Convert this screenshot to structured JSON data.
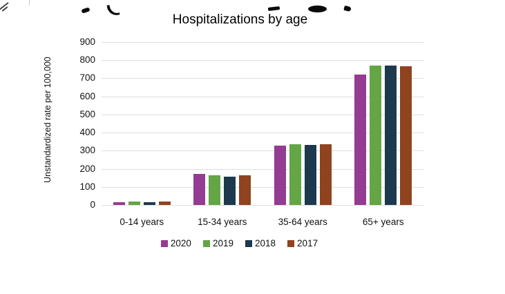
{
  "chart_data": {
    "type": "bar",
    "title": "Hospitalizations by age",
    "xlabel": "",
    "ylabel": "Unstandardized rate per 100,000",
    "categories": [
      "0-14 years",
      "15-34 years",
      "35-64 years",
      "65+ years"
    ],
    "series": [
      {
        "name": "2020",
        "color": "#943B92",
        "values": [
          17,
          170,
          329,
          722
        ]
      },
      {
        "name": "2019",
        "color": "#64A546",
        "values": [
          19,
          164,
          336,
          770
        ]
      },
      {
        "name": "2018",
        "color": "#1C394E",
        "values": [
          17,
          158,
          332,
          770
        ]
      },
      {
        "name": "2017",
        "color": "#8F431F",
        "values": [
          18,
          164,
          337,
          768
        ]
      }
    ],
    "ylim": [
      0,
      900
    ],
    "ytick_step": 100,
    "yticks": [
      "0",
      "100",
      "200",
      "300",
      "400",
      "500",
      "600",
      "700",
      "800",
      "900"
    ],
    "grid": true,
    "gridline_color": "#dedede",
    "legend_position": "bottom"
  }
}
